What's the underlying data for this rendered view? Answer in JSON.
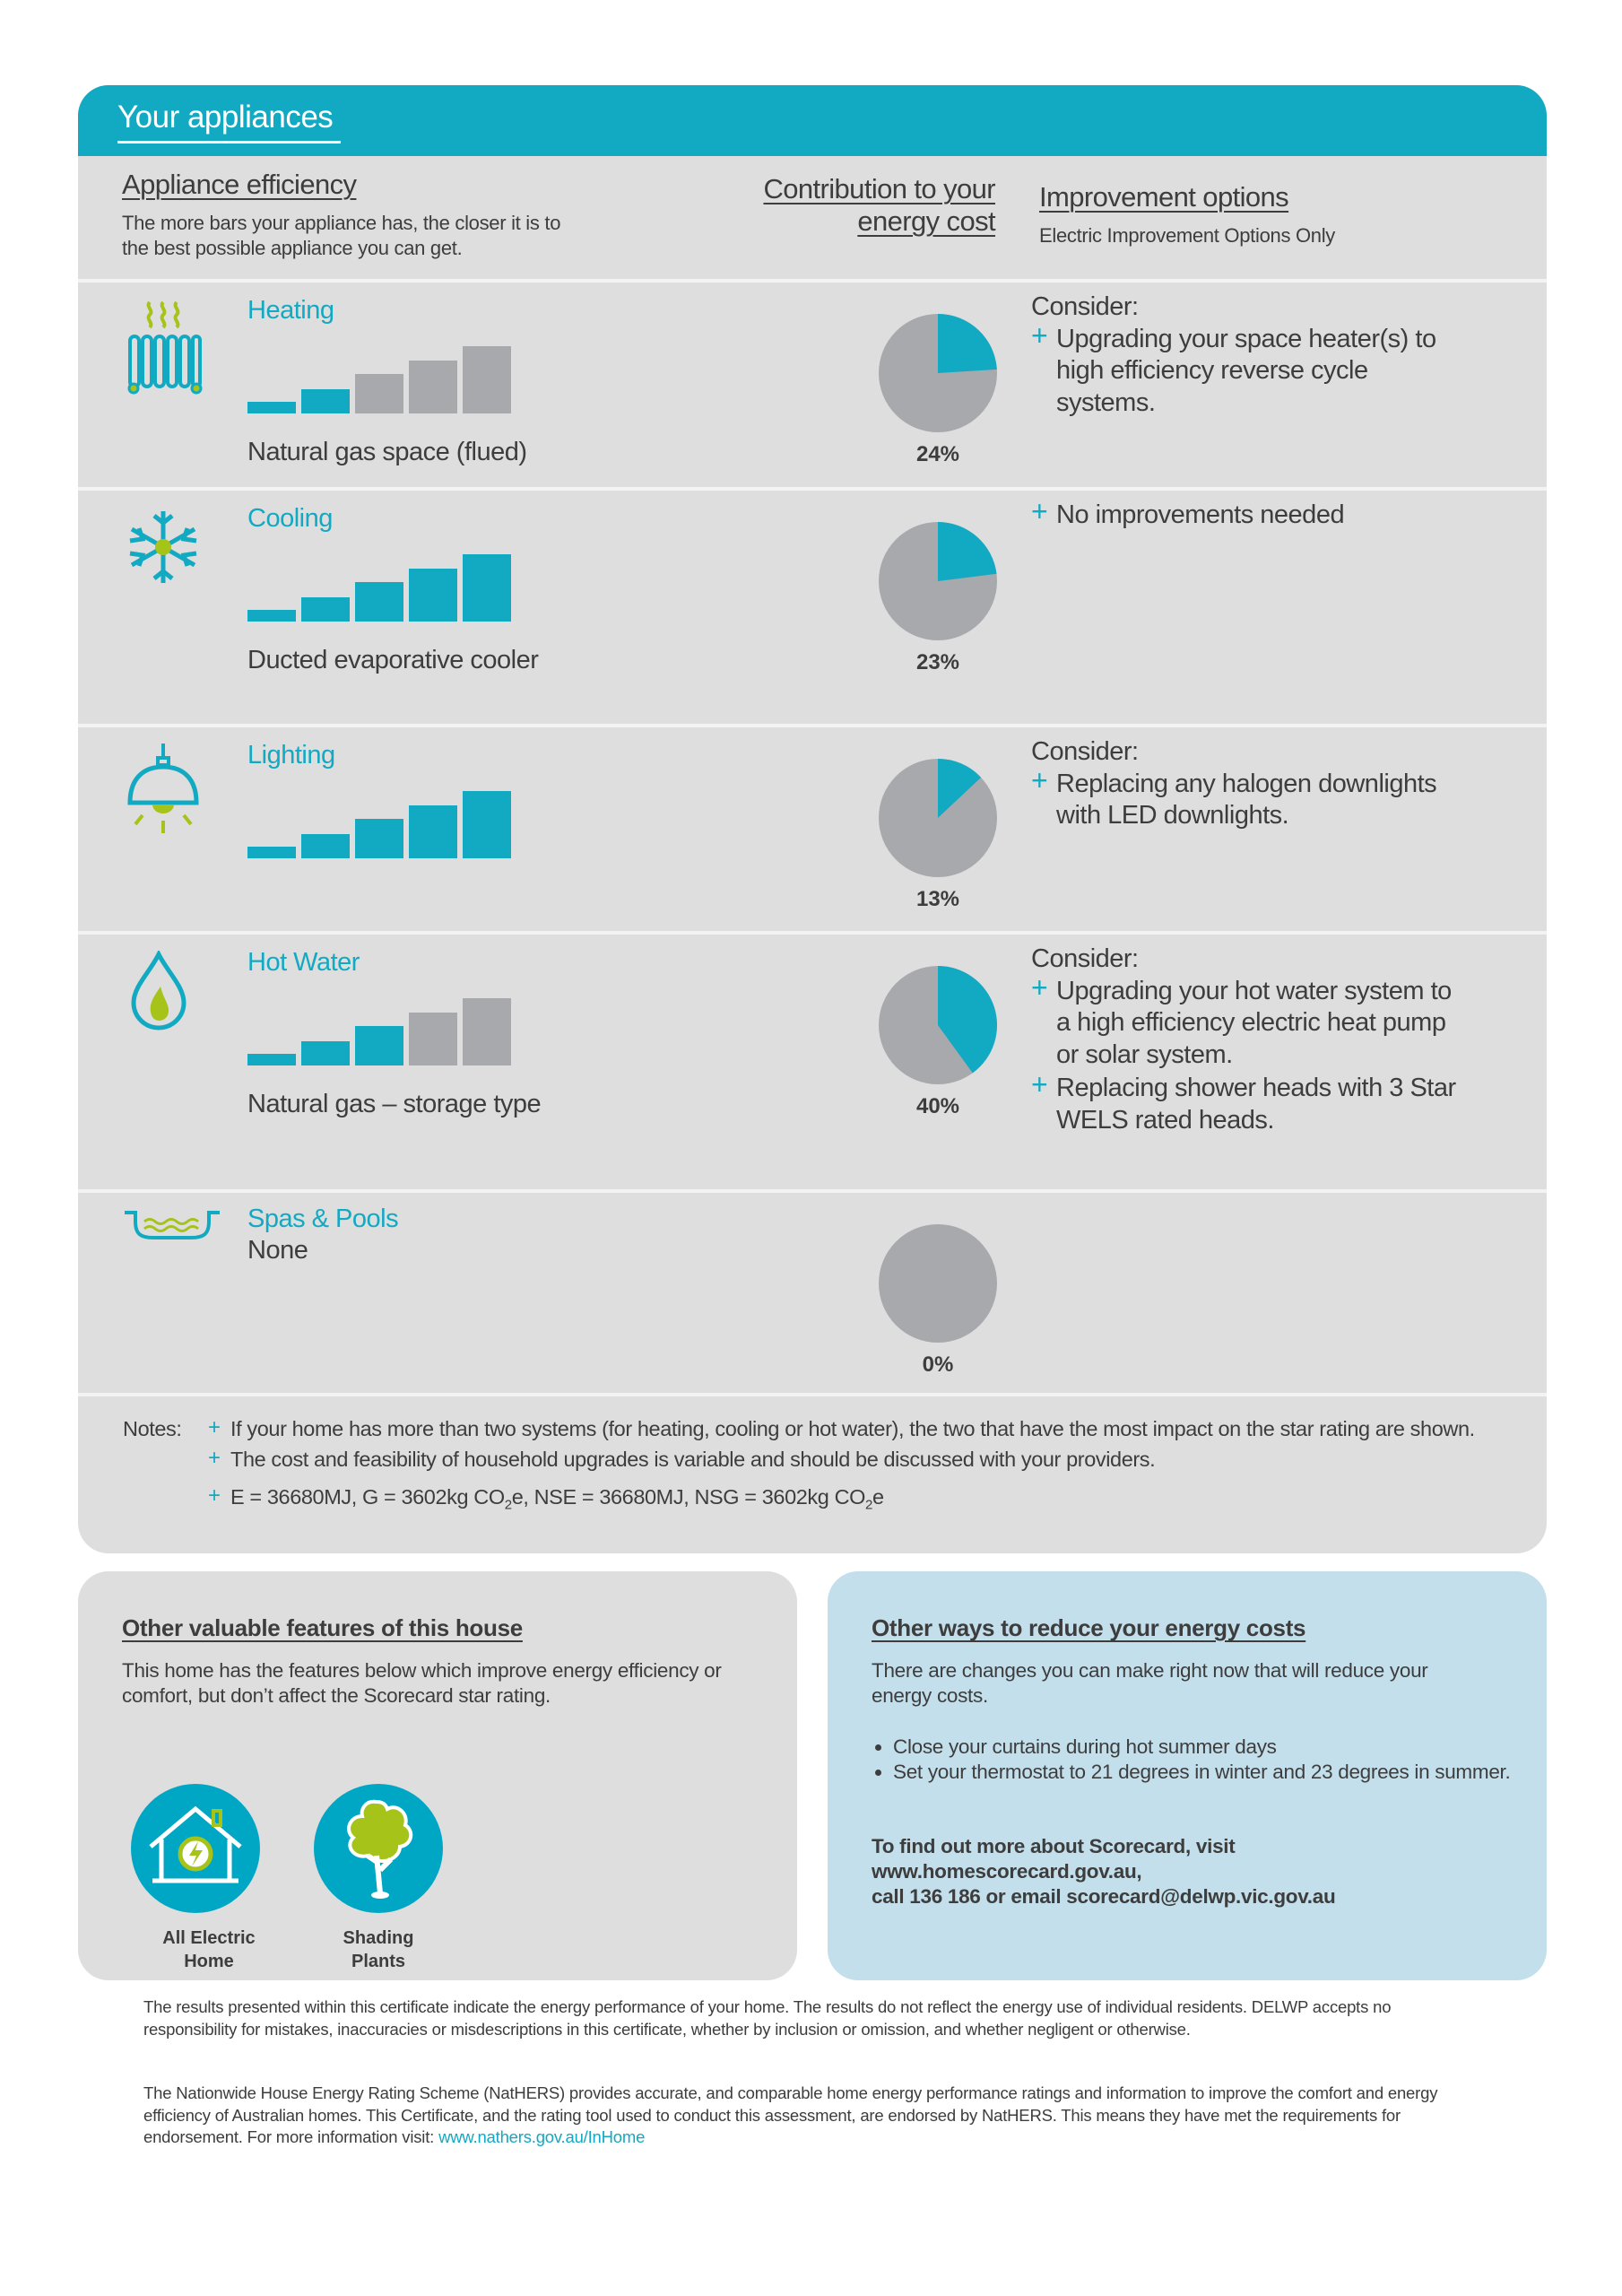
{
  "colors": {
    "accent": "#12a9c2",
    "panel": "#dedede",
    "bar_inactive": "#a7a9ac",
    "pie_rest": "#a7a9ac",
    "lime": "#a6c31a",
    "info_panel": "#c3dfeb"
  },
  "header": {
    "title": "Your appliances"
  },
  "columns": {
    "efficiency_title": "Appliance efficiency",
    "efficiency_desc": "The more bars your appliance has, the closer it is to the best possible appliance you can get.",
    "contribution_title_line1": "Contribution to your",
    "contribution_title_line2": "energy cost",
    "improvement_title": "Improvement options",
    "improvement_subtitle": "Electric Improvement Options Only"
  },
  "appliances": [
    {
      "icon": "radiator-icon",
      "name": "Heating",
      "bars_filled": 2,
      "bars_total": 5,
      "description": "Natural gas space (flued)",
      "contribution_pct": 24,
      "contribution_label": "24%",
      "consider": "Consider:",
      "improvements": [
        "Upgrading your space heater(s) to high efficiency reverse cycle systems."
      ]
    },
    {
      "icon": "snowflake-icon",
      "name": "Cooling",
      "bars_filled": 5,
      "bars_total": 5,
      "description": "Ducted evaporative cooler",
      "contribution_pct": 23,
      "contribution_label": "23%",
      "consider": "",
      "improvements": [
        "No improvements needed"
      ]
    },
    {
      "icon": "lamp-icon",
      "name": "Lighting",
      "bars_filled": 5,
      "bars_total": 5,
      "description": "",
      "contribution_pct": 13,
      "contribution_label": "13%",
      "consider": "Consider:",
      "improvements": [
        "Replacing any halogen downlights with LED downlights."
      ]
    },
    {
      "icon": "water-drop-flame-icon",
      "name": "Hot Water",
      "bars_filled": 3,
      "bars_total": 5,
      "description": "Natural gas – storage type",
      "contribution_pct": 40,
      "contribution_label": "40%",
      "consider": "Consider:",
      "improvements": [
        "Upgrading your hot water system to a high efficiency electric heat pump or solar system.",
        "Replacing shower heads with 3 Star WELS rated heads."
      ]
    },
    {
      "icon": "pool-icon",
      "name": "Spas & Pools",
      "bars_filled": 0,
      "bars_total": 0,
      "description": "None",
      "contribution_pct": 0,
      "contribution_label": "0%",
      "consider": "",
      "improvements": []
    }
  ],
  "notes": {
    "label": "Notes:",
    "items": [
      "If your home has more than two systems (for heating, cooling or hot water), the two that have the most impact on the star rating are shown.",
      "The cost and feasibility of household upgrades is variable and should be discussed with your providers."
    ],
    "energy_line": {
      "prefix": "E = 36680MJ, G = 3602kg CO",
      "sub1": "2",
      "mid": "e, NSE = 36680MJ, NSG = 3602kg CO",
      "sub2": "2",
      "suffix": "e"
    }
  },
  "features": {
    "title": "Other valuable features of this house",
    "description": "This home has the features below which improve energy efficiency or comfort, but don’t affect the Scorecard star rating.",
    "items": [
      {
        "icon": "electric-home-icon",
        "label_line1": "All Electric",
        "label_line2": "Home"
      },
      {
        "icon": "tree-icon",
        "label_line1": "Shading",
        "label_line2": "Plants"
      }
    ]
  },
  "reduce_costs": {
    "title": "Other ways to reduce your energy costs",
    "description": "There are changes you can make right now that will reduce your energy costs.",
    "tips": [
      "Close your curtains during hot summer days",
      "Set your thermostat to 21 degrees in winter and 23 degrees in summer."
    ],
    "contact_line1": "To find out more about Scorecard, visit",
    "contact_line2": "www.homescorecard.gov.au,",
    "contact_line3": "call 136 186 or email scorecard@delwp.vic.gov.au"
  },
  "footer": {
    "disclaimer": "The results presented within this certificate indicate the energy performance of your home. The results do not reflect the energy use of individual residents. DELWP accepts no responsibility for mistakes, inaccuracies or misdescriptions in this certificate, whether by inclusion or omission, and whether negligent or otherwise.",
    "nathers": "The Nationwide House Energy Rating Scheme (NatHERS) provides accurate, and comparable home energy performance ratings and information to improve the comfort and energy efficiency of Australian homes. This Certificate, and the rating tool used to conduct this assessment, are endorsed by NatHERS. This means they have met the requirements for endorsement. For more information visit:",
    "link": "www.nathers.gov.au/InHome"
  }
}
